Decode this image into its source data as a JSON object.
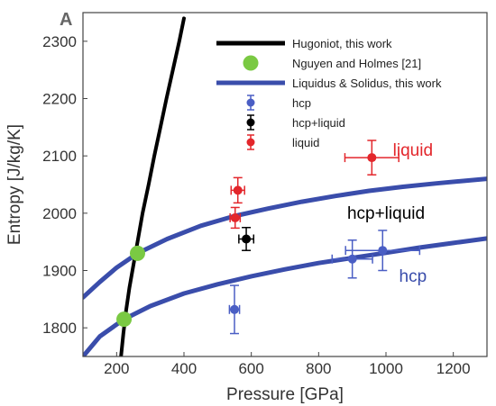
{
  "chart_data": {
    "type": "scatter",
    "panel_label": "A",
    "title": "",
    "xlabel": "Pressure [GPa]",
    "ylabel": "Entropy [J/kg/K]",
    "xlim": [
      100,
      1300
    ],
    "ylim": [
      1750,
      2350
    ],
    "xticks": [
      200,
      400,
      600,
      800,
      1000,
      1200
    ],
    "yticks": [
      1800,
      1900,
      2000,
      2100,
      2200,
      2300
    ],
    "grid": false,
    "legend_position": "top-right",
    "legend": [
      {
        "label": "Hugoniot, this work",
        "kind": "line",
        "color": "#000000"
      },
      {
        "label": "Nguyen and Holmes [21]",
        "kind": "marker",
        "color": "#7ac943"
      },
      {
        "label": "Liquidus & Solidus, this work",
        "kind": "line",
        "color": "#3a4dab"
      },
      {
        "label": "hcp",
        "kind": "errorbar",
        "color": "#4a5ec4"
      },
      {
        "label": "hcp+liquid",
        "kind": "errorbar",
        "color": "#000000"
      },
      {
        "label": "liquid",
        "kind": "errorbar",
        "color": "#e3262b"
      }
    ],
    "annotations": [
      {
        "text": "liquid",
        "x": 1080,
        "y": 2100,
        "color": "#e3262b"
      },
      {
        "text": "hcp+liquid",
        "x": 1000,
        "y": 1990,
        "color": "#000000"
      },
      {
        "text": "hcp",
        "x": 1080,
        "y": 1880,
        "color": "#3a4dab"
      }
    ],
    "series": [
      {
        "name": "Hugoniot, this work",
        "kind": "line",
        "color": "#000000",
        "points": [
          [
            213,
            1750
          ],
          [
            220,
            1790
          ],
          [
            228,
            1830
          ],
          [
            238,
            1870
          ],
          [
            250,
            1910
          ],
          [
            262,
            1950
          ],
          [
            277,
            2000
          ],
          [
            295,
            2050
          ],
          [
            312,
            2100
          ],
          [
            330,
            2150
          ],
          [
            348,
            2200
          ],
          [
            367,
            2250
          ],
          [
            386,
            2300
          ],
          [
            400,
            2340
          ]
        ]
      },
      {
        "name": "Liquidus",
        "kind": "line",
        "color": "#3a4dab",
        "points": [
          [
            100,
            1853
          ],
          [
            150,
            1880
          ],
          [
            200,
            1905
          ],
          [
            262,
            1930
          ],
          [
            350,
            1955
          ],
          [
            450,
            1978
          ],
          [
            550,
            1995
          ],
          [
            650,
            2008
          ],
          [
            750,
            2020
          ],
          [
            850,
            2030
          ],
          [
            950,
            2039
          ],
          [
            1050,
            2046
          ],
          [
            1150,
            2052
          ],
          [
            1300,
            2060
          ]
        ]
      },
      {
        "name": "Solidus",
        "kind": "line",
        "color": "#3a4dab",
        "points": [
          [
            100,
            1750
          ],
          [
            150,
            1785
          ],
          [
            222,
            1815
          ],
          [
            300,
            1838
          ],
          [
            400,
            1860
          ],
          [
            500,
            1876
          ],
          [
            600,
            1890
          ],
          [
            700,
            1902
          ],
          [
            800,
            1913
          ],
          [
            900,
            1922
          ],
          [
            1000,
            1931
          ],
          [
            1100,
            1940
          ],
          [
            1200,
            1948
          ],
          [
            1300,
            1956
          ]
        ]
      },
      {
        "name": "Nguyen and Holmes [21]",
        "kind": "marker",
        "color": "#7ac943",
        "points": [
          [
            262,
            1930
          ],
          [
            222,
            1815
          ]
        ]
      },
      {
        "name": "hcp",
        "kind": "errorbar",
        "color": "#4a5ec4",
        "points": [
          {
            "x": 550,
            "y": 1832,
            "xerr": 15,
            "yerr": 42
          },
          {
            "x": 900,
            "y": 1920,
            "xerr": 60,
            "yerr": 33
          },
          {
            "x": 990,
            "y": 1935,
            "xerr": 110,
            "yerr": 35
          }
        ]
      },
      {
        "name": "hcp+liquid",
        "kind": "errorbar",
        "color": "#000000",
        "points": [
          {
            "x": 585,
            "y": 1955,
            "xerr": 22,
            "yerr": 20
          }
        ]
      },
      {
        "name": "liquid",
        "kind": "errorbar",
        "color": "#e3262b",
        "points": [
          {
            "x": 552,
            "y": 1992,
            "xerr": 15,
            "yerr": 18
          },
          {
            "x": 560,
            "y": 2040,
            "xerr": 20,
            "yerr": 22
          },
          {
            "x": 958,
            "y": 2097,
            "xerr": 80,
            "yerr": 30
          }
        ]
      }
    ]
  }
}
